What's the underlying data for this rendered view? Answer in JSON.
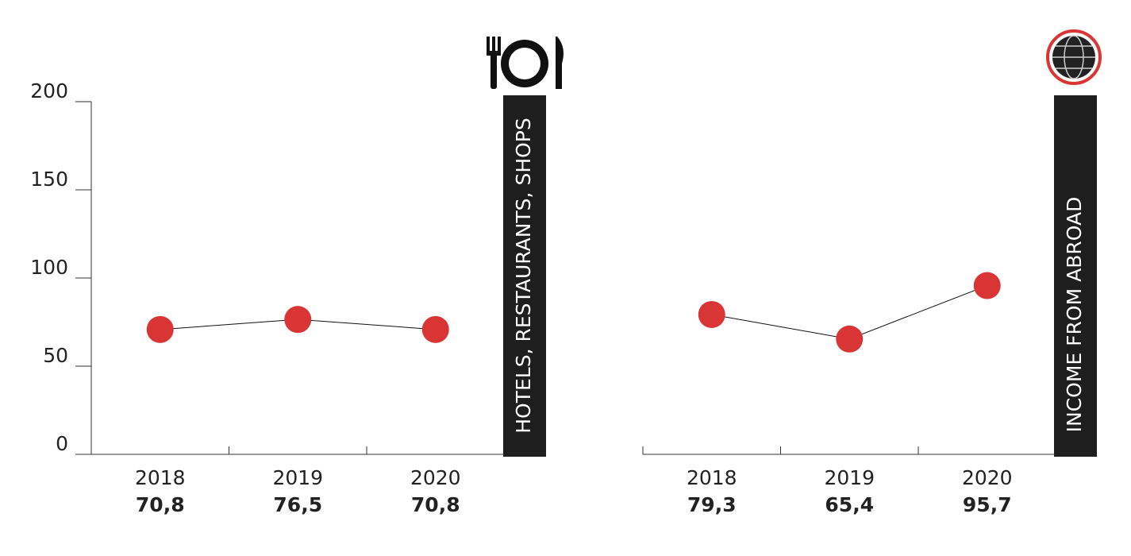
{
  "chart_data": [
    {
      "type": "line",
      "title": "HOTELS, RESTAURANTS, SHOPS",
      "categories": [
        "2018",
        "2019",
        "2020"
      ],
      "values": [
        70.8,
        76.5,
        70.8
      ],
      "value_labels": [
        "70,8",
        "76,5",
        "70,8"
      ],
      "color": "#d93535",
      "ylim": [
        0,
        200
      ],
      "yticks": [
        0,
        50,
        100,
        150,
        200
      ]
    },
    {
      "type": "line",
      "title": "INCOME FROM ABROAD",
      "categories": [
        "2018",
        "2019",
        "2020"
      ],
      "values": [
        79.3,
        65.4,
        95.7
      ],
      "value_labels": [
        "79,3",
        "65,4",
        "95,7"
      ],
      "color": "#d93535",
      "ylim": [
        0,
        200
      ]
    }
  ]
}
